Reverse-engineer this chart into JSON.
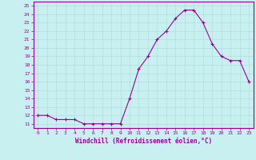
{
  "x": [
    0,
    1,
    2,
    3,
    4,
    5,
    6,
    7,
    8,
    9,
    10,
    11,
    12,
    13,
    14,
    15,
    16,
    17,
    18,
    19,
    20,
    21,
    22,
    23
  ],
  "y": [
    12,
    12,
    11.5,
    11.5,
    11.5,
    11,
    11,
    11,
    11,
    11,
    14,
    17.5,
    19,
    21,
    22,
    23.5,
    24.5,
    24.5,
    23,
    20.5,
    19,
    18.5,
    18.5,
    16
  ],
  "line_color": "#990099",
  "marker": "+",
  "bg_color": "#c8f0f0",
  "grid_color": "#b0dede",
  "xlabel": "Windchill (Refroidissement éolien,°C)",
  "yticks": [
    11,
    12,
    13,
    14,
    15,
    16,
    17,
    18,
    19,
    20,
    21,
    22,
    23,
    24,
    25
  ],
  "xlim": [
    -0.5,
    23.5
  ],
  "ylim": [
    10.5,
    25.5
  ],
  "tick_color": "#990099",
  "spine_color": "#990099",
  "xlabel_color": "#990099"
}
